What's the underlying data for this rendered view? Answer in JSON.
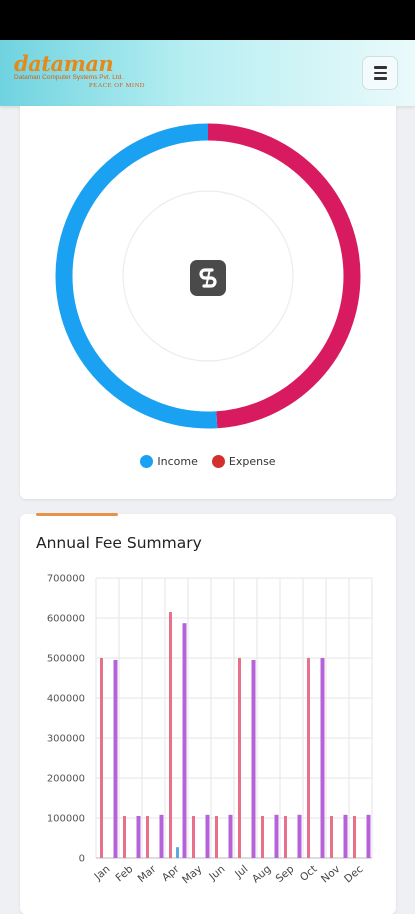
{
  "header": {
    "logo_main": "dataman",
    "logo_sub": "Dataman Computer Systems Pvt. Ltd.",
    "logo_tag": "PEACE OF MIND",
    "menu_icon": "hamburger-icon"
  },
  "donut": {
    "legend": [
      {
        "label": "Income",
        "color": "#1ba1f2"
      },
      {
        "label": "Expense",
        "color": "#d81b60"
      }
    ],
    "income_fraction": 0.51,
    "expense_fraction": 0.49,
    "center_icon": "app-s-logo-icon"
  },
  "fee": {
    "title": "Annual Fee Summary"
  },
  "chart_data": {
    "type": "bar",
    "title": "Annual Fee Summary",
    "categories": [
      "Jan",
      "Feb",
      "Mar",
      "Apr",
      "May",
      "Jun",
      "Jul",
      "Aug",
      "Sep",
      "Oct",
      "Nov",
      "Dec"
    ],
    "series": [
      {
        "values": [
          500000,
          105000,
          105000,
          615000,
          105000,
          105000,
          500000,
          105000,
          105000,
          500000,
          105000,
          105000
        ],
        "color": "#e8708a"
      },
      {
        "values": [
          0,
          0,
          0,
          27000,
          0,
          0,
          0,
          0,
          0,
          0,
          0,
          0
        ],
        "color": "#5aa9e6"
      },
      {
        "values": [
          495000,
          105000,
          108000,
          587000,
          108000,
          108000,
          495000,
          108000,
          108000,
          500000,
          108000,
          108000
        ],
        "color": "#b663d9"
      }
    ],
    "ylim": [
      0,
      700000
    ],
    "yticks": [
      0,
      100000,
      200000,
      300000,
      400000,
      500000,
      600000,
      700000
    ],
    "grid": true
  }
}
